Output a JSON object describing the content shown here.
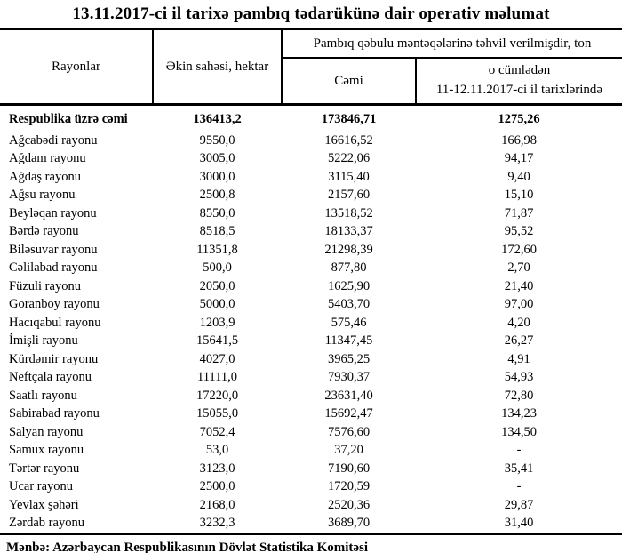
{
  "title": "13.11.2017-ci il tarixə pambıq tədarükünə dair operativ məlumat",
  "colors": {
    "text": "#000000",
    "background": "#ffffff",
    "rule": "#000000"
  },
  "table": {
    "header": {
      "col_regions": "Rayonlar",
      "col_area": "Əkin sahəsi, hektar",
      "group_delivered": "Pambıq qəbulu məntəqələrinə təhvil verilmişdir, ton",
      "col_total": "Cəmi",
      "col_recent_line1": "o cümlədən",
      "col_recent_line2": "11-12.11.2017-ci il tarixlərində"
    },
    "rows": [
      {
        "region": "Respublika üzrə cəmi",
        "area": "136413,2",
        "total": "173846,71",
        "recent": "1275,26",
        "bold": true
      },
      {
        "region": "Ağcabədi rayonu",
        "area": "9550,0",
        "total": "16616,52",
        "recent": "166,98",
        "bold": false
      },
      {
        "region": "Ağdam rayonu",
        "area": "3005,0",
        "total": "5222,06",
        "recent": "94,17",
        "bold": false
      },
      {
        "region": "Ağdaş rayonu",
        "area": "3000,0",
        "total": "3115,40",
        "recent": "9,40",
        "bold": false
      },
      {
        "region": "Ağsu rayonu",
        "area": "2500,8",
        "total": "2157,60",
        "recent": "15,10",
        "bold": false
      },
      {
        "region": "Beyləqan rayonu",
        "area": "8550,0",
        "total": "13518,52",
        "recent": "71,87",
        "bold": false
      },
      {
        "region": "Bərdə rayonu",
        "area": "8518,5",
        "total": "18133,37",
        "recent": "95,52",
        "bold": false
      },
      {
        "region": "Biləsuvar rayonu",
        "area": "11351,8",
        "total": "21298,39",
        "recent": "172,60",
        "bold": false
      },
      {
        "region": "Cəlilabad rayonu",
        "area": "500,0",
        "total": "877,80",
        "recent": "2,70",
        "bold": false
      },
      {
        "region": "Füzuli rayonu",
        "area": "2050,0",
        "total": "1625,90",
        "recent": "21,40",
        "bold": false
      },
      {
        "region": "Goranboy rayonu",
        "area": "5000,0",
        "total": "5403,70",
        "recent": "97,00",
        "bold": false
      },
      {
        "region": "Hacıqabul rayonu",
        "area": "1203,9",
        "total": "575,46",
        "recent": "4,20",
        "bold": false
      },
      {
        "region": "İmişli rayonu",
        "area": "15641,5",
        "total": "11347,45",
        "recent": "26,27",
        "bold": false
      },
      {
        "region": "Kürdəmir rayonu",
        "area": "4027,0",
        "total": "3965,25",
        "recent": "4,91",
        "bold": false
      },
      {
        "region": "Neftçala rayonu",
        "area": "11111,0",
        "total": "7930,37",
        "recent": "54,93",
        "bold": false
      },
      {
        "region": "Saatlı rayonu",
        "area": "17220,0",
        "total": "23631,40",
        "recent": "72,80",
        "bold": false
      },
      {
        "region": "Sabirabad rayonu",
        "area": "15055,0",
        "total": "15692,47",
        "recent": "134,23",
        "bold": false
      },
      {
        "region": "Salyan rayonu",
        "area": "7052,4",
        "total": "7576,60",
        "recent": "134,50",
        "bold": false
      },
      {
        "region": "Samux rayonu",
        "area": "53,0",
        "total": "37,20",
        "recent": "-",
        "bold": false
      },
      {
        "region": "Tərtər rayonu",
        "area": "3123,0",
        "total": "7190,60",
        "recent": "35,41",
        "bold": false
      },
      {
        "region": "Ucar rayonu",
        "area": "2500,0",
        "total": "1720,59",
        "recent": "-",
        "bold": false
      },
      {
        "region": "Yevlax şəhəri",
        "area": "2168,0",
        "total": "2520,36",
        "recent": "29,87",
        "bold": false
      },
      {
        "region": "Zərdab rayonu",
        "area": "3232,3",
        "total": "3689,70",
        "recent": "31,40",
        "bold": false
      }
    ]
  },
  "footer": {
    "source": "Mənbə: Azərbaycan Respublikasının Dövlət Statistika Komitəsi"
  }
}
